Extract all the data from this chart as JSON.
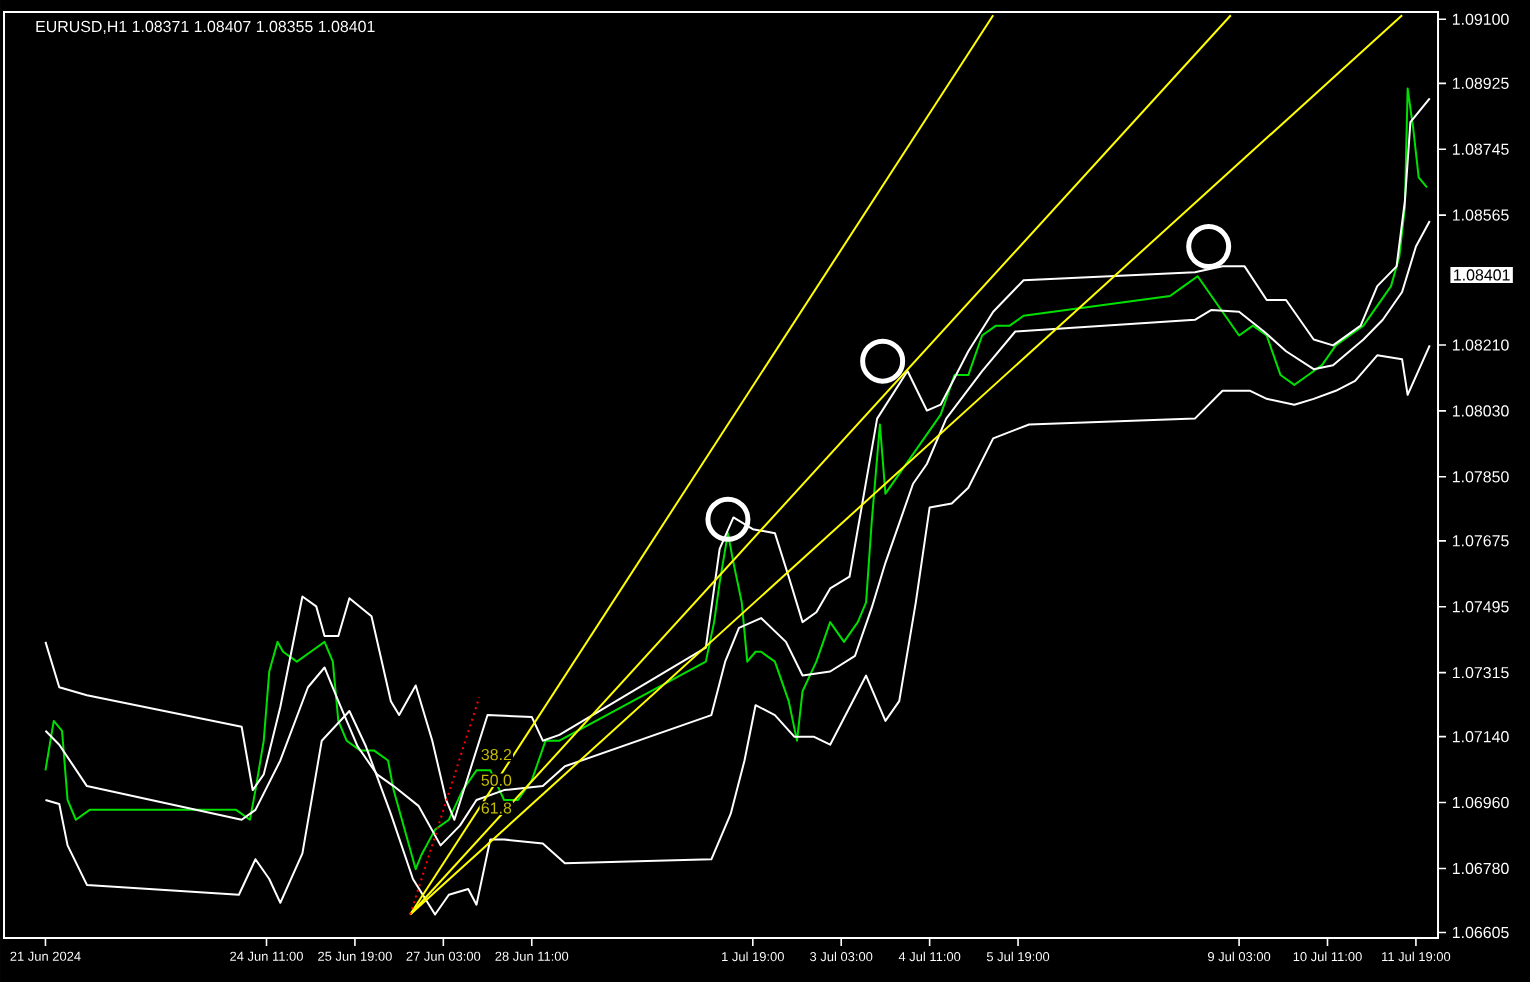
{
  "chart_data": {
    "type": "line",
    "title": "EURUSD,H1  1.08371 1.08407 1.08355 1.08401",
    "xlim": [
      "2024-06-20T12:00",
      "2024-07-12T03:00"
    ],
    "ylim": [
      1.0659,
      1.0912
    ],
    "xticks": [
      {
        "value": "2024-06-21T03:00",
        "label": "21 Jun 2024"
      },
      {
        "value": "2024-06-24T11:00",
        "label": "24 Jun 11:00"
      },
      {
        "value": "2024-06-25T19:00",
        "label": "25 Jun 19:00"
      },
      {
        "value": "2024-06-27T03:00",
        "label": "27 Jun 03:00"
      },
      {
        "value": "2024-06-28T11:00",
        "label": "28 Jun 11:00"
      },
      {
        "value": "2024-07-01T19:00",
        "label": "1 Jul 19:00"
      },
      {
        "value": "2024-07-03T03:00",
        "label": "3 Jul 03:00"
      },
      {
        "value": "2024-07-04T11:00",
        "label": "4 Jul 11:00"
      },
      {
        "value": "2024-07-05T19:00",
        "label": "5 Jul 19:00"
      },
      {
        "value": "2024-07-09T03:00",
        "label": "9 Jul 03:00"
      },
      {
        "value": "2024-07-10T11:00",
        "label": "10 Jul 11:00"
      },
      {
        "value": "2024-07-11T19:00",
        "label": "11 Jul 19:00"
      }
    ],
    "yticks": [
      {
        "value": 1.091,
        "label": "1.09100"
      },
      {
        "value": 1.08925,
        "label": "1.08925"
      },
      {
        "value": 1.08745,
        "label": "1.08745"
      },
      {
        "value": 1.08565,
        "label": "1.08565"
      },
      {
        "value": 1.0821,
        "label": "1.08210"
      },
      {
        "value": 1.0803,
        "label": "1.08030"
      },
      {
        "value": 1.0785,
        "label": "1.07850"
      },
      {
        "value": 1.07675,
        "label": "1.07675"
      },
      {
        "value": 1.07495,
        "label": "1.07495"
      },
      {
        "value": 1.07315,
        "label": "1.07315"
      },
      {
        "value": 1.0714,
        "label": "1.07140"
      },
      {
        "value": 1.0696,
        "label": "1.06960"
      },
      {
        "value": 1.0678,
        "label": "1.06780"
      },
      {
        "value": 1.06605,
        "label": "1.06605"
      }
    ],
    "series": [
      {
        "color": "#00e000",
        "x": [
          "2024-06-21T03:00",
          "2024-06-21T06:00",
          "2024-06-21T09:00",
          "2024-06-21T11:00",
          "2024-06-21T14:00",
          "2024-06-21T19:00",
          "2024-06-24T00:00",
          "2024-06-24T05:00",
          "2024-06-24T07:00",
          "2024-06-24T10:00",
          "2024-06-24T12:00",
          "2024-06-24T15:00",
          "2024-06-24T17:00",
          "2024-06-24T22:00",
          "2024-06-25T03:00",
          "2024-06-25T08:00",
          "2024-06-25T11:00",
          "2024-06-25T13:00",
          "2024-06-25T16:00",
          "2024-06-25T21:00",
          "2024-06-26T02:00",
          "2024-06-26T07:00",
          "2024-06-26T09:00",
          "2024-06-26T14:00",
          "2024-06-26T17:00",
          "2024-06-26T19:00",
          "2024-06-27T00:00",
          "2024-06-27T05:00",
          "2024-06-27T10:00",
          "2024-06-27T15:00",
          "2024-06-27T20:00",
          "2024-06-28T01:00",
          "2024-06-28T06:00",
          "2024-06-28T11:00",
          "2024-06-28T16:00",
          "2024-06-28T21:00",
          "2024-07-01T02:00",
          "2024-07-01T05:00",
          "2024-07-01T07:00",
          "2024-07-01T10:00",
          "2024-07-01T12:00",
          "2024-07-01T15:00",
          "2024-07-01T17:00",
          "2024-07-01T20:00",
          "2024-07-01T22:00",
          "2024-07-02T03:00",
          "2024-07-02T08:00",
          "2024-07-02T11:00",
          "2024-07-02T13:00",
          "2024-07-02T18:00",
          "2024-07-02T23:00",
          "2024-07-03T04:00",
          "2024-07-03T09:00",
          "2024-07-03T12:00",
          "2024-07-03T14:00",
          "2024-07-03T17:00",
          "2024-07-03T19:00",
          "2024-07-04T00:00",
          "2024-07-04T05:00",
          "2024-07-04T10:00",
          "2024-07-04T15:00",
          "2024-07-04T20:00",
          "2024-07-05T01:00",
          "2024-07-05T06:00",
          "2024-07-05T11:00",
          "2024-07-05T16:00",
          "2024-07-05T21:00",
          "2024-07-08T02:00",
          "2024-07-08T07:00",
          "2024-07-08T12:00",
          "2024-07-08T17:00",
          "2024-07-08T22:00",
          "2024-07-09T03:00",
          "2024-07-09T08:00",
          "2024-07-09T13:00",
          "2024-07-09T18:00",
          "2024-07-09T23:00",
          "2024-07-10T04:00",
          "2024-07-10T09:00",
          "2024-07-10T14:00",
          "2024-07-10T19:00",
          "2024-07-11T00:00",
          "2024-07-11T05:00",
          "2024-07-11T10:00",
          "2024-07-11T13:00",
          "2024-07-11T15:00",
          "2024-07-11T16:00",
          "2024-07-11T18:00",
          "2024-07-11T20:00",
          "2024-07-11T23:00"
        ],
        "values": [
          1.07048,
          1.07183,
          1.07156,
          1.06967,
          1.06913,
          1.0694,
          1.0694,
          1.06913,
          1.06994,
          1.07129,
          1.07318,
          1.07399,
          1.07372,
          1.07345,
          1.07372,
          1.07399,
          1.07345,
          1.07183,
          1.07129,
          1.07102,
          1.07102,
          1.07075,
          1.06994,
          1.06859,
          1.06778,
          1.06816,
          1.06886,
          1.06913,
          1.06994,
          1.07048,
          1.07048,
          1.06967,
          1.06967,
          1.07021,
          1.07129,
          1.07129,
          1.07345,
          1.07453,
          1.07561,
          1.07696,
          1.07615,
          1.07507,
          1.07345,
          1.07372,
          1.07372,
          1.07345,
          1.07237,
          1.07129,
          1.07264,
          1.07345,
          1.07453,
          1.07399,
          1.07453,
          1.07507,
          1.07723,
          1.07993,
          1.07804,
          1.07858,
          1.07912,
          1.07966,
          1.0802,
          1.08128,
          1.08128,
          1.08236,
          1.08263,
          1.08263,
          1.0829,
          1.08344,
          1.08371,
          1.08398,
          1.08344,
          1.0829,
          1.08236,
          1.08263,
          1.08236,
          1.08128,
          1.08101,
          1.08128,
          1.08155,
          1.08209,
          1.08236,
          1.08263,
          1.08317,
          1.08371,
          1.08452,
          1.08587,
          1.08911,
          1.08803,
          1.08668,
          1.08641
        ]
      },
      {
        "color": "#ffffff",
        "x": [
          "2024-06-21T03:00",
          "2024-06-21T08:00",
          "2024-06-21T18:00",
          "2024-06-24T02:00",
          "2024-06-24T06:00",
          "2024-06-24T10:00",
          "2024-06-24T16:00",
          "2024-06-25T00:00",
          "2024-06-25T05:00",
          "2024-06-25T08:00",
          "2024-06-25T13:00",
          "2024-06-25T17:00",
          "2024-06-26T01:00",
          "2024-06-26T08:00",
          "2024-06-26T11:00",
          "2024-06-26T17:00",
          "2024-06-26T23:00",
          "2024-06-27T04:00",
          "2024-06-27T07:00",
          "2024-06-27T19:00",
          "2024-06-28T11:00",
          "2024-06-28T15:00",
          "2024-06-28T21:00",
          "2024-07-01T02:00",
          "2024-07-01T07:00",
          "2024-07-01T12:00",
          "2024-07-01T19:00",
          "2024-07-02T03:00",
          "2024-07-02T08:00",
          "2024-07-02T13:00",
          "2024-07-02T18:00",
          "2024-07-02T23:00",
          "2024-07-03T06:00",
          "2024-07-03T16:00",
          "2024-07-04T03:00",
          "2024-07-04T10:00",
          "2024-07-04T15:00",
          "2024-07-05T01:00",
          "2024-07-05T10:00",
          "2024-07-05T21:00",
          "2024-07-08T11:00",
          "2024-07-08T21:00",
          "2024-07-09T05:00",
          "2024-07-09T13:00",
          "2024-07-09T20:00",
          "2024-07-10T06:00",
          "2024-07-10T13:00",
          "2024-07-10T23:00",
          "2024-07-11T05:00",
          "2024-07-11T12:00",
          "2024-07-11T15:00",
          "2024-07-11T17:00",
          "2024-07-12T00:00"
        ],
        "values": [
          1.07399,
          1.07275,
          1.07253,
          1.07167,
          1.06994,
          1.07037,
          1.07221,
          1.07523,
          1.07496,
          1.07415,
          1.07415,
          1.07518,
          1.07469,
          1.07237,
          1.07199,
          1.0728,
          1.07129,
          1.06967,
          1.06913,
          1.07199,
          1.07194,
          1.07129,
          1.07145,
          1.07383,
          1.07653,
          1.07739,
          1.07707,
          1.07696,
          1.07577,
          1.07453,
          1.0748,
          1.07545,
          1.07577,
          1.08009,
          1.08139,
          1.08031,
          1.08047,
          1.08193,
          1.08301,
          1.08387,
          1.08409,
          1.08425,
          1.08425,
          1.08333,
          1.08333,
          1.08225,
          1.08209,
          1.08263,
          1.08371,
          1.08425,
          1.08603,
          1.08819,
          1.08884
        ]
      },
      {
        "color": "#ffffff",
        "x": [
          "2024-06-21T03:00",
          "2024-06-21T08:00",
          "2024-06-21T18:00",
          "2024-06-24T02:00",
          "2024-06-24T07:00",
          "2024-06-24T16:00",
          "2024-06-25T02:00",
          "2024-06-25T08:00",
          "2024-06-25T13:00",
          "2024-06-25T20:00",
          "2024-06-26T03:00",
          "2024-06-26T09:00",
          "2024-06-26T18:00",
          "2024-06-27T02:00",
          "2024-06-27T09:00",
          "2024-06-27T15:00",
          "2024-06-28T01:00",
          "2024-06-28T15:00",
          "2024-06-28T23:00",
          "2024-07-01T04:00",
          "2024-07-01T09:00",
          "2024-07-01T14:00",
          "2024-07-01T22:00",
          "2024-07-02T07:00",
          "2024-07-02T13:00",
          "2024-07-02T23:00",
          "2024-07-03T08:00",
          "2024-07-03T14:00",
          "2024-07-03T19:00",
          "2024-07-04T05:00",
          "2024-07-04T10:00",
          "2024-07-04T17:00",
          "2024-07-05T06:00",
          "2024-07-05T18:00",
          "2024-07-08T11:00",
          "2024-07-08T17:00",
          "2024-07-09T03:00",
          "2024-07-09T12:00",
          "2024-07-09T20:00",
          "2024-07-10T06:00",
          "2024-07-10T13:00",
          "2024-07-11T00:00",
          "2024-07-11T07:00",
          "2024-07-11T14:00",
          "2024-07-11T19:00",
          "2024-07-12T00:00"
        ],
        "values": [
          1.07156,
          1.07118,
          1.07005,
          1.06913,
          1.0694,
          1.07075,
          1.07275,
          1.07329,
          1.07237,
          1.07113,
          1.07037,
          1.07005,
          1.06951,
          1.06843,
          1.06897,
          1.06967,
          1.06994,
          1.07005,
          1.07059,
          1.07199,
          1.07345,
          1.07437,
          1.07464,
          1.07399,
          1.07307,
          1.07318,
          1.07361,
          1.07491,
          1.07615,
          1.07831,
          1.07885,
          1.08009,
          1.08139,
          1.08247,
          1.08279,
          1.08306,
          1.08301,
          1.08247,
          1.08193,
          1.08144,
          1.08155,
          1.08225,
          1.08279,
          1.08355,
          1.08479,
          1.08549
        ]
      },
      {
        "color": "#ffffff",
        "x": [
          "2024-06-21T03:00",
          "2024-06-21T08:00",
          "2024-06-21T11:00",
          "2024-06-21T18:00",
          "2024-06-24T01:00",
          "2024-06-24T07:00",
          "2024-06-24T12:00",
          "2024-06-24T16:00",
          "2024-06-25T00:00",
          "2024-06-25T07:00",
          "2024-06-25T17:00",
          "2024-06-25T23:00",
          "2024-06-26T08:00",
          "2024-06-26T16:00",
          "2024-06-27T00:00",
          "2024-06-27T05:00",
          "2024-06-27T12:00",
          "2024-06-27T15:00",
          "2024-06-27T20:00",
          "2024-06-28T01:00",
          "2024-06-28T15:00",
          "2024-06-28T23:00",
          "2024-07-01T04:00",
          "2024-07-01T11:00",
          "2024-07-01T16:00",
          "2024-07-01T20:00",
          "2024-07-02T03:00",
          "2024-07-02T10:00",
          "2024-07-02T17:00",
          "2024-07-02T23:00",
          "2024-07-03T12:00",
          "2024-07-03T19:00",
          "2024-07-04T00:00",
          "2024-07-04T06:00",
          "2024-07-04T11:00",
          "2024-07-04T19:00",
          "2024-07-05T01:00",
          "2024-07-05T10:00",
          "2024-07-05T23:00",
          "2024-07-08T11:00",
          "2024-07-08T21:00",
          "2024-07-09T07:00",
          "2024-07-09T13:00",
          "2024-07-09T23:00",
          "2024-07-10T06:00",
          "2024-07-10T14:00",
          "2024-07-10T21:00",
          "2024-07-11T05:00",
          "2024-07-11T14:00",
          "2024-07-11T16:00",
          "2024-07-12T00:00"
        ],
        "values": [
          1.06967,
          1.06956,
          1.06843,
          1.06735,
          1.06708,
          1.06805,
          1.06751,
          1.06686,
          1.06821,
          1.07129,
          1.0721,
          1.07113,
          1.06929,
          1.06751,
          1.06654,
          1.06708,
          1.06724,
          1.06681,
          1.06859,
          1.06859,
          1.06848,
          1.06794,
          1.06805,
          1.06929,
          1.07075,
          1.07226,
          1.07199,
          1.0714,
          1.0714,
          1.07118,
          1.07307,
          1.07183,
          1.07237,
          1.07507,
          1.07766,
          1.07777,
          1.0782,
          1.07955,
          1.07993,
          1.08009,
          1.08085,
          1.08085,
          1.08063,
          1.08047,
          1.08063,
          1.08085,
          1.08112,
          1.08182,
          1.08171,
          1.08074,
          1.08209
        ]
      },
      {
        "color": "#ffff00",
        "x": [
          "2024-06-26T15:00",
          "2024-07-05T10:00"
        ],
        "values": [
          1.06654,
          1.09111
        ]
      },
      {
        "color": "#ffff00",
        "x": [
          "2024-06-26T15:00",
          "2024-07-09T00:00"
        ],
        "values": [
          1.06654,
          1.09111
        ]
      },
      {
        "color": "#ffff00",
        "x": [
          "2024-06-26T15:00",
          "2024-07-11T14:00"
        ],
        "values": [
          1.06654,
          1.09111
        ]
      },
      {
        "color": "#ff0000",
        "line_style": "dotted",
        "x": [
          "2024-06-26T15:00",
          "2024-06-27T16:00"
        ],
        "values": [
          1.06654,
          1.07248
        ]
      },
      {
        "type": "scatter",
        "marker": "circle",
        "color": "#ffffff",
        "x": [
          "2024-07-01T10:00",
          "2024-07-03T18:00",
          "2024-07-08T16:00"
        ],
        "values": [
          1.07734,
          1.08166,
          1.08479
        ]
      }
    ],
    "annotations": [
      {
        "text": "38.2",
        "x": "2024-06-27T16:00",
        "y": 1.07091
      },
      {
        "text": "50.0",
        "x": "2024-06-27T16:00",
        "y": 1.07021
      },
      {
        "text": "61.8",
        "x": "2024-06-27T16:00",
        "y": 1.06945
      },
      "1.08401"
    ]
  }
}
